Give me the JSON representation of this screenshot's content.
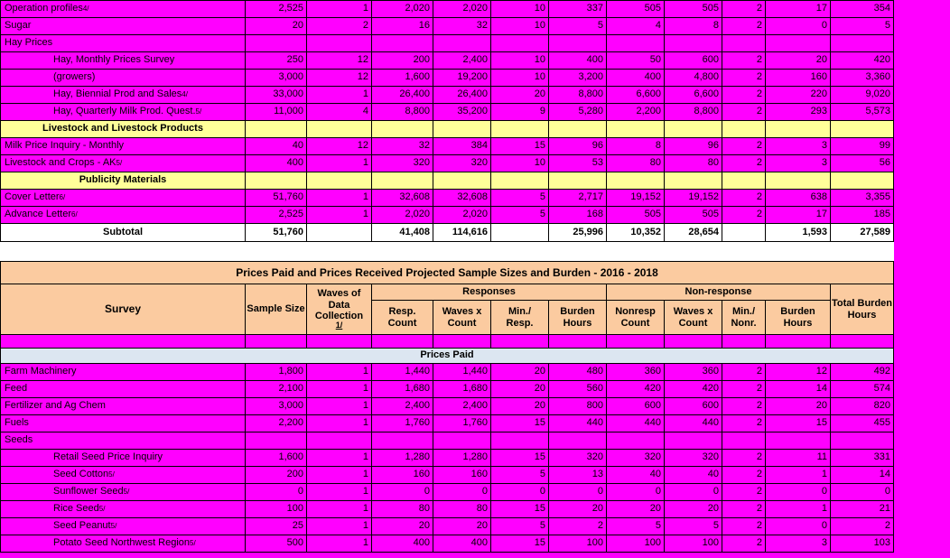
{
  "colors": {
    "magenta": "#FF00FF",
    "yellow": "#FFFF99",
    "peach": "#FBCBA0",
    "blue": "#DCE6F1"
  },
  "table1": {
    "rows": [
      {
        "label": "Operation profiles",
        "sup": "4/",
        "style": "data",
        "values": [
          "2,525",
          "1",
          "2,020",
          "2,020",
          "10",
          "337",
          "505",
          "505",
          "2",
          "17",
          "354"
        ]
      },
      {
        "label": "Sugar",
        "style": "data",
        "values": [
          "20",
          "2",
          "16",
          "32",
          "10",
          "5",
          "4",
          "8",
          "2",
          "0",
          "5"
        ]
      },
      {
        "label": "Hay Prices",
        "style": "data",
        "values": []
      },
      {
        "label": "Hay, Monthly Prices Survey",
        "indent": 1,
        "style": "data",
        "values": [
          "250",
          "12",
          "200",
          "2,400",
          "10",
          "400",
          "50",
          "600",
          "2",
          "20",
          "420"
        ]
      },
      {
        "label": "(growers)",
        "indent": 1,
        "style": "data",
        "values": [
          "3,000",
          "12",
          "1,600",
          "19,200",
          "10",
          "3,200",
          "400",
          "4,800",
          "2",
          "160",
          "3,360"
        ]
      },
      {
        "label": "Hay, Biennial Prod and Sales",
        "sup": "4/",
        "indent": 1,
        "style": "data",
        "values": [
          "33,000",
          "1",
          "26,400",
          "26,400",
          "20",
          "8,800",
          "6,600",
          "6,600",
          "2",
          "220",
          "9,020"
        ]
      },
      {
        "label": "Hay, Quarterly Milk Prod. Quest.",
        "sup": "5/",
        "indent": 1,
        "style": "data",
        "values": [
          "11,000",
          "4",
          "8,800",
          "35,200",
          "9",
          "5,280",
          "2,200",
          "8,800",
          "2",
          "293",
          "5,573"
        ]
      },
      {
        "label": "Livestock and Livestock Products",
        "style": "section",
        "values": []
      },
      {
        "label": "Milk Price Inquiry - Monthly",
        "style": "data",
        "values": [
          "40",
          "12",
          "32",
          "384",
          "15",
          "96",
          "8",
          "96",
          "2",
          "3",
          "99"
        ]
      },
      {
        "label": "Livestock and Crops  - AK",
        "sup": "5/",
        "style": "data",
        "values": [
          "400",
          "1",
          "320",
          "320",
          "10",
          "53",
          "80",
          "80",
          "2",
          "3",
          "56"
        ]
      },
      {
        "label": "Publicity Materials",
        "style": "section",
        "values": []
      },
      {
        "label": "Cover Letter",
        "sup": "6/",
        "style": "data",
        "values": [
          "51,760",
          "1",
          "32,608",
          "32,608",
          "5",
          "2,717",
          "19,152",
          "19,152",
          "2",
          "638",
          "3,355"
        ]
      },
      {
        "label": "Advance Letter",
        "sup": "6/",
        "style": "data",
        "values": [
          "2,525",
          "1",
          "2,020",
          "2,020",
          "5",
          "168",
          "505",
          "505",
          "2",
          "17",
          "185"
        ]
      },
      {
        "label": "Subtotal",
        "style": "subtotal",
        "values": [
          "51,760",
          "",
          "41,408",
          "114,616",
          "",
          "25,996",
          "10,352",
          "28,654",
          "",
          "1,593",
          "27,589"
        ]
      }
    ]
  },
  "table2": {
    "title": "Prices Paid and Prices Received Projected Sample Sizes and Burden - 2016 - 2018",
    "header": {
      "survey": "Survey",
      "sample_size": "Sample Size",
      "waves": "Waves of Data Collection",
      "waves_footnote": "1/",
      "responses": "Responses",
      "non_response": "Non-response",
      "total": "Total Burden Hours",
      "sub": [
        "Resp.\nCount",
        "Waves x\nCount",
        "Min./\nResp.",
        "Burden\nHours",
        "Nonresp\nCount",
        "Waves x\nCount",
        "Min./\nNonr.",
        "Burden\nHours"
      ]
    },
    "rows": [
      {
        "label": "",
        "style": "blank",
        "values": []
      },
      {
        "label": "Prices Paid",
        "style": "section-blue"
      },
      {
        "label": "Farm Machinery",
        "style": "data",
        "values": [
          "1,800",
          "1",
          "1,440",
          "1,440",
          "20",
          "480",
          "360",
          "360",
          "2",
          "12",
          "492"
        ]
      },
      {
        "label": "Feed",
        "style": "data",
        "values": [
          "2,100",
          "1",
          "1,680",
          "1,680",
          "20",
          "560",
          "420",
          "420",
          "2",
          "14",
          "574"
        ]
      },
      {
        "label": "Fertilizer and Ag Chem",
        "style": "data",
        "values": [
          "3,000",
          "1",
          "2,400",
          "2,400",
          "20",
          "800",
          "600",
          "600",
          "2",
          "20",
          "820"
        ]
      },
      {
        "label": "Fuels",
        "style": "data",
        "values": [
          "2,200",
          "1",
          "1,760",
          "1,760",
          "15",
          "440",
          "440",
          "440",
          "2",
          "15",
          "455"
        ]
      },
      {
        "label": "Seeds",
        "style": "data",
        "values": []
      },
      {
        "label": "Retail Seed Price Inquiry",
        "indent": 1,
        "style": "data",
        "values": [
          "1,600",
          "1",
          "1,280",
          "1,280",
          "15",
          "320",
          "320",
          "320",
          "2",
          "11",
          "331"
        ]
      },
      {
        "label": "Seed Cotton",
        "sup": "5/",
        "indent": 1,
        "style": "data",
        "values": [
          "200",
          "1",
          "160",
          "160",
          "5",
          "13",
          "40",
          "40",
          "2",
          "1",
          "14"
        ]
      },
      {
        "label": "Sunflower Seed",
        "sup": "5/",
        "indent": 1,
        "style": "data",
        "values": [
          "0",
          "1",
          "0",
          "0",
          "0",
          "0",
          "0",
          "0",
          "2",
          "0",
          "0"
        ]
      },
      {
        "label": "Rice Seed",
        "sup": "5/",
        "indent": 1,
        "style": "data",
        "values": [
          "100",
          "1",
          "80",
          "80",
          "15",
          "20",
          "20",
          "20",
          "2",
          "1",
          "21"
        ]
      },
      {
        "label": "Seed Peanut",
        "sup": "5/",
        "indent": 1,
        "style": "data",
        "values": [
          "25",
          "1",
          "20",
          "20",
          "5",
          "2",
          "5",
          "5",
          "2",
          "0",
          "2"
        ]
      },
      {
        "label": "Potato Seed Northwest Region",
        "sup": "5/",
        "indent": 1,
        "style": "data",
        "values": [
          "500",
          "1",
          "400",
          "400",
          "15",
          "100",
          "100",
          "100",
          "2",
          "3",
          "103"
        ]
      }
    ]
  }
}
